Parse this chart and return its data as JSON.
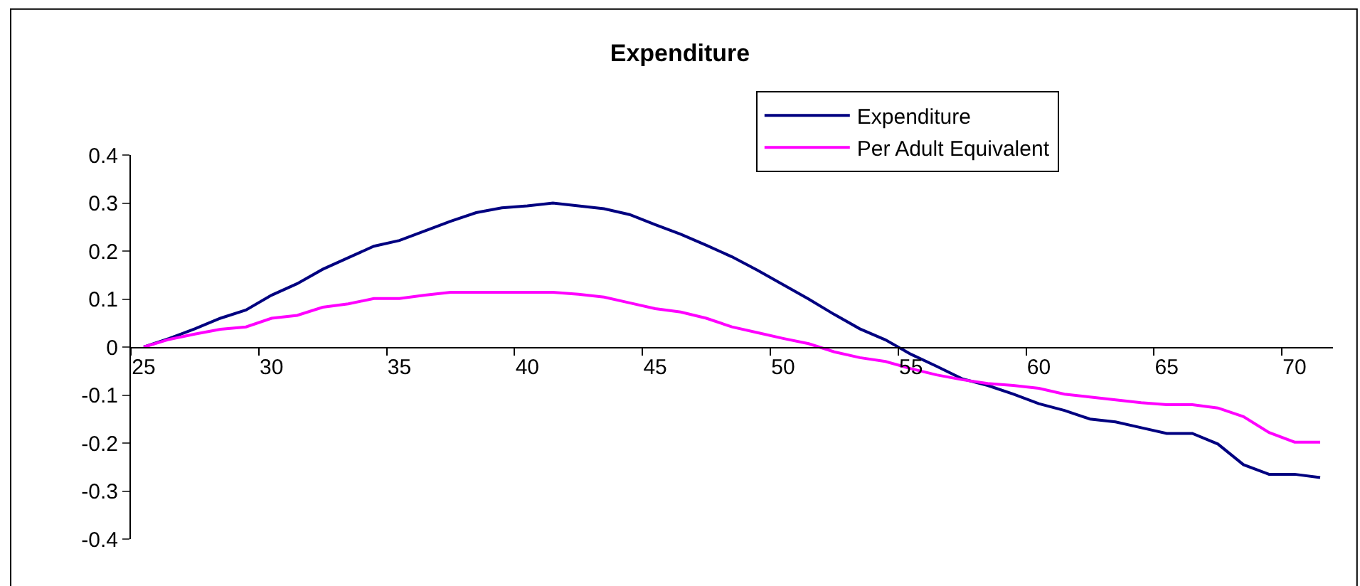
{
  "chart_data": {
    "type": "line",
    "title": "Expenditure",
    "x": [
      25,
      26,
      27,
      28,
      29,
      30,
      31,
      32,
      33,
      34,
      35,
      36,
      37,
      38,
      39,
      40,
      41,
      42,
      43,
      44,
      45,
      46,
      47,
      48,
      49,
      50,
      51,
      52,
      53,
      54,
      55,
      56,
      57,
      58,
      59,
      60,
      61,
      62,
      63,
      64,
      65,
      66,
      67,
      68,
      69,
      70,
      71
    ],
    "series": [
      {
        "name": "Expenditure",
        "color": "#000080",
        "values": [
          0,
          0.018,
          0.038,
          0.06,
          0.077,
          0.108,
          0.132,
          0.162,
          0.186,
          0.21,
          0.222,
          0.242,
          0.262,
          0.28,
          0.29,
          0.294,
          0.3,
          0.294,
          0.288,
          0.276,
          0.255,
          0.235,
          0.212,
          0.188,
          0.16,
          0.13,
          0.1,
          0.068,
          0.038,
          0.015,
          -0.015,
          -0.04,
          -0.066,
          -0.08,
          -0.098,
          -0.118,
          -0.132,
          -0.15,
          -0.156,
          -0.168,
          -0.18,
          -0.18,
          -0.202,
          -0.245,
          -0.265,
          -0.265,
          -0.272
        ]
      },
      {
        "name": "Per Adult Equivalent",
        "color": "#ff00ff",
        "values": [
          0,
          0.016,
          0.027,
          0.037,
          0.042,
          0.06,
          0.066,
          0.083,
          0.09,
          0.101,
          0.101,
          0.108,
          0.114,
          0.114,
          0.114,
          0.114,
          0.114,
          0.11,
          0.104,
          0.092,
          0.08,
          0.073,
          0.06,
          0.042,
          0.03,
          0.018,
          0.007,
          -0.01,
          -0.022,
          -0.03,
          -0.045,
          -0.058,
          -0.068,
          -0.076,
          -0.08,
          -0.086,
          -0.098,
          -0.104,
          -0.11,
          -0.116,
          -0.12,
          -0.12,
          -0.127,
          -0.145,
          -0.178,
          -0.198,
          -0.198
        ]
      }
    ],
    "xlim": [
      24.5,
      71.5
    ],
    "xticks": [
      {
        "value": 24.5,
        "label": null
      },
      25,
      {
        "value": 29.5,
        "label": null
      },
      30,
      {
        "value": 34.5,
        "label": null
      },
      35,
      {
        "value": 39.5,
        "label": null
      },
      40,
      {
        "value": 44.5,
        "label": null
      },
      45,
      {
        "value": 49.5,
        "label": null
      },
      50,
      {
        "value": 54.5,
        "label": null
      },
      55,
      {
        "value": 59.5,
        "label": null
      },
      60,
      {
        "value": 64.5,
        "label": null
      },
      65,
      {
        "value": 69.5,
        "label": null
      },
      70
    ],
    "ylim": [
      -0.4,
      0.4
    ],
    "yticks": [
      -0.4,
      -0.3,
      -0.2,
      -0.1,
      0,
      0.1,
      0.2,
      0.3,
      0.4
    ],
    "grid": false,
    "legend": "top right",
    "marker": "none",
    "line_style": "solid"
  }
}
